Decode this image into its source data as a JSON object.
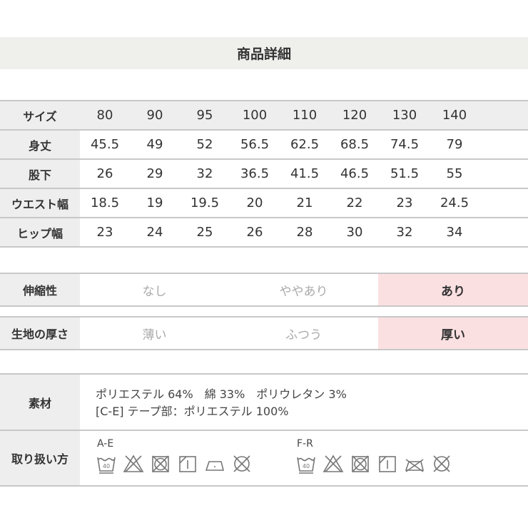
{
  "title": "商品詳細",
  "size_table": {
    "header": "サイズ",
    "sizes": [
      "80",
      "90",
      "95",
      "100",
      "110",
      "120",
      "130",
      "140"
    ],
    "rows": [
      {
        "label": "身丈",
        "values": [
          "45.5",
          "49",
          "52",
          "56.5",
          "62.5",
          "68.5",
          "74.5",
          "79"
        ]
      },
      {
        "label": "股下",
        "values": [
          "26",
          "29",
          "32",
          "36.5",
          "41.5",
          "46.5",
          "51.5",
          "55"
        ]
      },
      {
        "label": "ウエスト幅",
        "values": [
          "18.5",
          "19",
          "19.5",
          "20",
          "21",
          "22",
          "23",
          "24.5"
        ]
      },
      {
        "label": "ヒップ幅",
        "values": [
          "23",
          "24",
          "25",
          "26",
          "28",
          "30",
          "32",
          "34"
        ]
      }
    ]
  },
  "stretch": {
    "label": "伸縮性",
    "options": [
      "なし",
      "ややあり",
      "あり"
    ],
    "selected": "あり"
  },
  "thickness": {
    "label": "生地の厚さ",
    "options": [
      "薄い",
      "ふつう",
      "厚い"
    ],
    "selected": "厚い"
  },
  "material": {
    "label": "素材",
    "lines": [
      "ポリエステル 64%　綿 33%　ポリウレタン 3%",
      "[C-E] テープ部：ポリエステル 100%"
    ]
  },
  "care": {
    "label": "取り扱い方",
    "groups": [
      {
        "name": "A-E",
        "icons": [
          "wash-40-icon",
          "no-bleach-icon",
          "no-tumble-dry-icon",
          "line-dry-icon",
          "iron-low-icon",
          "no-dry-clean-icon"
        ]
      },
      {
        "name": "F-R",
        "icons": [
          "wash-40-icon",
          "no-bleach-icon",
          "no-tumble-dry-icon",
          "line-dry-icon",
          "no-iron-icon",
          "no-dry-clean-icon"
        ]
      }
    ]
  },
  "colors": {
    "selected": "#fbe0e2",
    "label_bg": "#eeeeee"
  }
}
